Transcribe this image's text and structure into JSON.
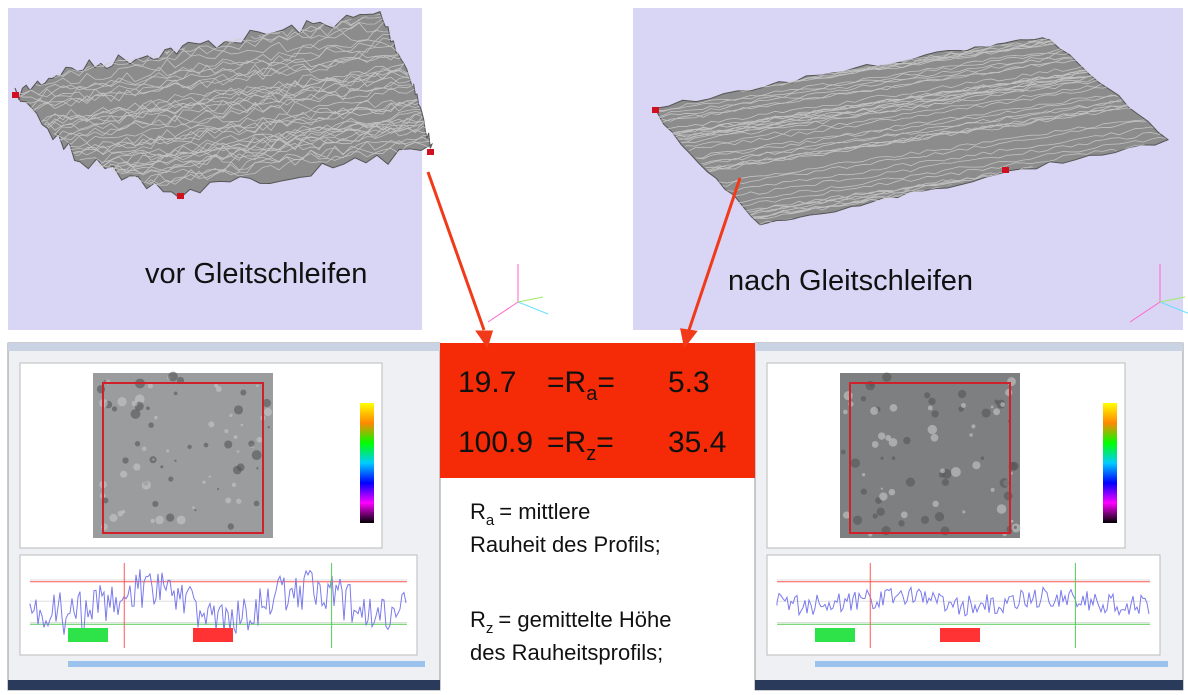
{
  "panels": {
    "before": {
      "label": "vor Gleitschleifen"
    },
    "after": {
      "label": "nach Gleitschleifen"
    }
  },
  "comparison": {
    "rows": [
      {
        "before": 19.7,
        "symbol": "=R",
        "subscript": "a",
        "suffix": "=",
        "after": 5.3
      },
      {
        "before": 100.9,
        "symbol": "=R",
        "subscript": "z",
        "suffix": "=",
        "after": 35.4
      }
    ]
  },
  "definitions": [
    {
      "symbol": "R",
      "subscript": "a",
      "lines": [
        "= mittlere",
        "Rauheit des Profils;"
      ]
    },
    {
      "symbol": "R",
      "subscript": "z",
      "lines": [
        "= gemittelte Höhe",
        "des Rauheitsprofils;"
      ]
    }
  ]
}
